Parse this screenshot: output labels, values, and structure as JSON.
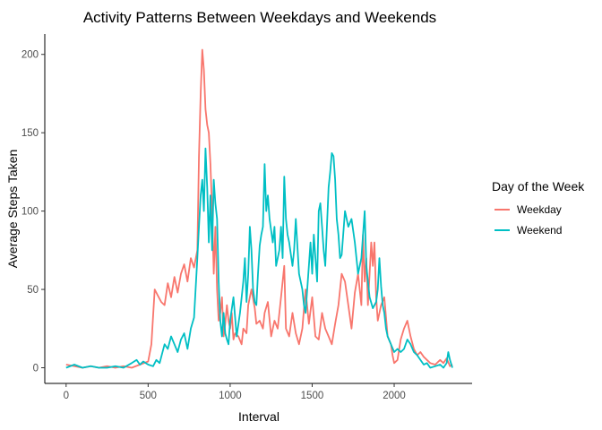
{
  "chart_data": {
    "type": "line",
    "title": "Activity Patterns Between Weekdays and Weekends",
    "xlabel": "Interval",
    "ylabel": "Average Steps Taken",
    "xlim": [
      -130,
      2475
    ],
    "ylim": [
      -10,
      213
    ],
    "x_ticks": [
      0,
      500,
      1000,
      1500,
      2000
    ],
    "y_ticks": [
      0,
      50,
      100,
      150,
      200
    ],
    "grid": false,
    "legend": {
      "title": "Day of the Week",
      "position": "right"
    },
    "series": [
      {
        "name": "Weekday",
        "color": "#F8766D",
        "points": [
          [
            0,
            2
          ],
          [
            50,
            1
          ],
          [
            100,
            0
          ],
          [
            150,
            1
          ],
          [
            200,
            0
          ],
          [
            250,
            1
          ],
          [
            300,
            0
          ],
          [
            350,
            1
          ],
          [
            400,
            0
          ],
          [
            450,
            2
          ],
          [
            500,
            4
          ],
          [
            520,
            15
          ],
          [
            540,
            50
          ],
          [
            560,
            46
          ],
          [
            580,
            42
          ],
          [
            600,
            40
          ],
          [
            620,
            54
          ],
          [
            640,
            45
          ],
          [
            660,
            58
          ],
          [
            680,
            48
          ],
          [
            700,
            60
          ],
          [
            720,
            66
          ],
          [
            740,
            55
          ],
          [
            760,
            70
          ],
          [
            780,
            64
          ],
          [
            800,
            75
          ],
          [
            810,
            135
          ],
          [
            820,
            175
          ],
          [
            830,
            203
          ],
          [
            840,
            190
          ],
          [
            850,
            165
          ],
          [
            860,
            155
          ],
          [
            870,
            150
          ],
          [
            880,
            130
          ],
          [
            890,
            100
          ],
          [
            900,
            60
          ],
          [
            910,
            90
          ],
          [
            920,
            50
          ],
          [
            930,
            30
          ],
          [
            940,
            35
          ],
          [
            950,
            45
          ],
          [
            960,
            20
          ],
          [
            970,
            28
          ],
          [
            980,
            40
          ],
          [
            990,
            30
          ],
          [
            1000,
            25
          ],
          [
            1010,
            35
          ],
          [
            1020,
            18
          ],
          [
            1030,
            22
          ],
          [
            1050,
            20
          ],
          [
            1070,
            15
          ],
          [
            1080,
            25
          ],
          [
            1100,
            22
          ],
          [
            1110,
            40
          ],
          [
            1130,
            50
          ],
          [
            1150,
            38
          ],
          [
            1160,
            28
          ],
          [
            1180,
            30
          ],
          [
            1200,
            25
          ],
          [
            1210,
            35
          ],
          [
            1230,
            42
          ],
          [
            1250,
            20
          ],
          [
            1270,
            30
          ],
          [
            1290,
            25
          ],
          [
            1310,
            45
          ],
          [
            1330,
            65
          ],
          [
            1340,
            25
          ],
          [
            1360,
            20
          ],
          [
            1380,
            35
          ],
          [
            1400,
            22
          ],
          [
            1420,
            15
          ],
          [
            1440,
            25
          ],
          [
            1460,
            50
          ],
          [
            1480,
            28
          ],
          [
            1500,
            45
          ],
          [
            1520,
            20
          ],
          [
            1540,
            18
          ],
          [
            1560,
            35
          ],
          [
            1580,
            25
          ],
          [
            1600,
            20
          ],
          [
            1620,
            15
          ],
          [
            1640,
            28
          ],
          [
            1660,
            40
          ],
          [
            1680,
            60
          ],
          [
            1700,
            55
          ],
          [
            1720,
            40
          ],
          [
            1740,
            25
          ],
          [
            1760,
            48
          ],
          [
            1780,
            60
          ],
          [
            1800,
            40
          ],
          [
            1810,
            85
          ],
          [
            1820,
            55
          ],
          [
            1830,
            70
          ],
          [
            1840,
            40
          ],
          [
            1850,
            60
          ],
          [
            1860,
            80
          ],
          [
            1870,
            65
          ],
          [
            1880,
            80
          ],
          [
            1890,
            45
          ],
          [
            1900,
            30
          ],
          [
            1920,
            40
          ],
          [
            1940,
            45
          ],
          [
            1960,
            20
          ],
          [
            1980,
            15
          ],
          [
            1990,
            8
          ],
          [
            2000,
            3
          ],
          [
            2020,
            5
          ],
          [
            2040,
            18
          ],
          [
            2060,
            25
          ],
          [
            2080,
            30
          ],
          [
            2100,
            20
          ],
          [
            2120,
            12
          ],
          [
            2140,
            8
          ],
          [
            2160,
            10
          ],
          [
            2180,
            7
          ],
          [
            2200,
            5
          ],
          [
            2220,
            3
          ],
          [
            2250,
            2
          ],
          [
            2280,
            5
          ],
          [
            2300,
            3
          ],
          [
            2320,
            6
          ],
          [
            2340,
            1
          ],
          [
            2355,
            2
          ]
        ]
      },
      {
        "name": "Weekend",
        "color": "#00BFC4",
        "points": [
          [
            0,
            0
          ],
          [
            50,
            2
          ],
          [
            100,
            0
          ],
          [
            150,
            1
          ],
          [
            200,
            0
          ],
          [
            250,
            0
          ],
          [
            300,
            1
          ],
          [
            350,
            0
          ],
          [
            400,
            3
          ],
          [
            430,
            5
          ],
          [
            450,
            2
          ],
          [
            470,
            4
          ],
          [
            500,
            2
          ],
          [
            530,
            1
          ],
          [
            550,
            5
          ],
          [
            570,
            3
          ],
          [
            600,
            15
          ],
          [
            620,
            12
          ],
          [
            640,
            20
          ],
          [
            660,
            15
          ],
          [
            680,
            10
          ],
          [
            700,
            18
          ],
          [
            720,
            22
          ],
          [
            740,
            12
          ],
          [
            760,
            25
          ],
          [
            780,
            32
          ],
          [
            800,
            70
          ],
          [
            810,
            90
          ],
          [
            820,
            110
          ],
          [
            830,
            120
          ],
          [
            840,
            100
          ],
          [
            850,
            140
          ],
          [
            860,
            115
          ],
          [
            870,
            80
          ],
          [
            880,
            110
          ],
          [
            890,
            75
          ],
          [
            900,
            120
          ],
          [
            910,
            105
          ],
          [
            920,
            95
          ],
          [
            930,
            55
          ],
          [
            940,
            30
          ],
          [
            950,
            20
          ],
          [
            960,
            35
          ],
          [
            970,
            22
          ],
          [
            980,
            18
          ],
          [
            990,
            15
          ],
          [
            1000,
            30
          ],
          [
            1020,
            45
          ],
          [
            1040,
            20
          ],
          [
            1060,
            35
          ],
          [
            1080,
            55
          ],
          [
            1090,
            70
          ],
          [
            1100,
            42
          ],
          [
            1110,
            60
          ],
          [
            1120,
            90
          ],
          [
            1130,
            75
          ],
          [
            1140,
            50
          ],
          [
            1150,
            42
          ],
          [
            1160,
            40
          ],
          [
            1170,
            60
          ],
          [
            1180,
            78
          ],
          [
            1190,
            85
          ],
          [
            1200,
            90
          ],
          [
            1210,
            130
          ],
          [
            1220,
            100
          ],
          [
            1230,
            110
          ],
          [
            1240,
            95
          ],
          [
            1260,
            80
          ],
          [
            1270,
            90
          ],
          [
            1280,
            65
          ],
          [
            1300,
            75
          ],
          [
            1310,
            90
          ],
          [
            1320,
            70
          ],
          [
            1330,
            122
          ],
          [
            1340,
            95
          ],
          [
            1350,
            85
          ],
          [
            1360,
            80
          ],
          [
            1380,
            65
          ],
          [
            1390,
            75
          ],
          [
            1400,
            95
          ],
          [
            1420,
            60
          ],
          [
            1440,
            50
          ],
          [
            1450,
            40
          ],
          [
            1460,
            35
          ],
          [
            1480,
            65
          ],
          [
            1490,
            80
          ],
          [
            1500,
            60
          ],
          [
            1510,
            85
          ],
          [
            1520,
            70
          ],
          [
            1530,
            55
          ],
          [
            1540,
            100
          ],
          [
            1550,
            105
          ],
          [
            1560,
            90
          ],
          [
            1570,
            75
          ],
          [
            1580,
            65
          ],
          [
            1600,
            115
          ],
          [
            1610,
            125
          ],
          [
            1620,
            137
          ],
          [
            1630,
            135
          ],
          [
            1640,
            120
          ],
          [
            1650,
            95
          ],
          [
            1660,
            85
          ],
          [
            1670,
            70
          ],
          [
            1680,
            72
          ],
          [
            1700,
            100
          ],
          [
            1720,
            90
          ],
          [
            1740,
            95
          ],
          [
            1760,
            80
          ],
          [
            1780,
            60
          ],
          [
            1800,
            70
          ],
          [
            1820,
            100
          ],
          [
            1830,
            65
          ],
          [
            1850,
            45
          ],
          [
            1870,
            38
          ],
          [
            1890,
            42
          ],
          [
            1900,
            50
          ],
          [
            1910,
            70
          ],
          [
            1920,
            52
          ],
          [
            1930,
            40
          ],
          [
            1940,
            35
          ],
          [
            1950,
            25
          ],
          [
            1960,
            20
          ],
          [
            1980,
            15
          ],
          [
            2000,
            10
          ],
          [
            2020,
            12
          ],
          [
            2040,
            10
          ],
          [
            2060,
            12
          ],
          [
            2080,
            18
          ],
          [
            2100,
            15
          ],
          [
            2120,
            10
          ],
          [
            2140,
            8
          ],
          [
            2160,
            5
          ],
          [
            2180,
            2
          ],
          [
            2200,
            3
          ],
          [
            2220,
            0
          ],
          [
            2250,
            1
          ],
          [
            2280,
            2
          ],
          [
            2300,
            0
          ],
          [
            2320,
            3
          ],
          [
            2330,
            10
          ],
          [
            2340,
            5
          ],
          [
            2355,
            0
          ]
        ]
      }
    ]
  }
}
